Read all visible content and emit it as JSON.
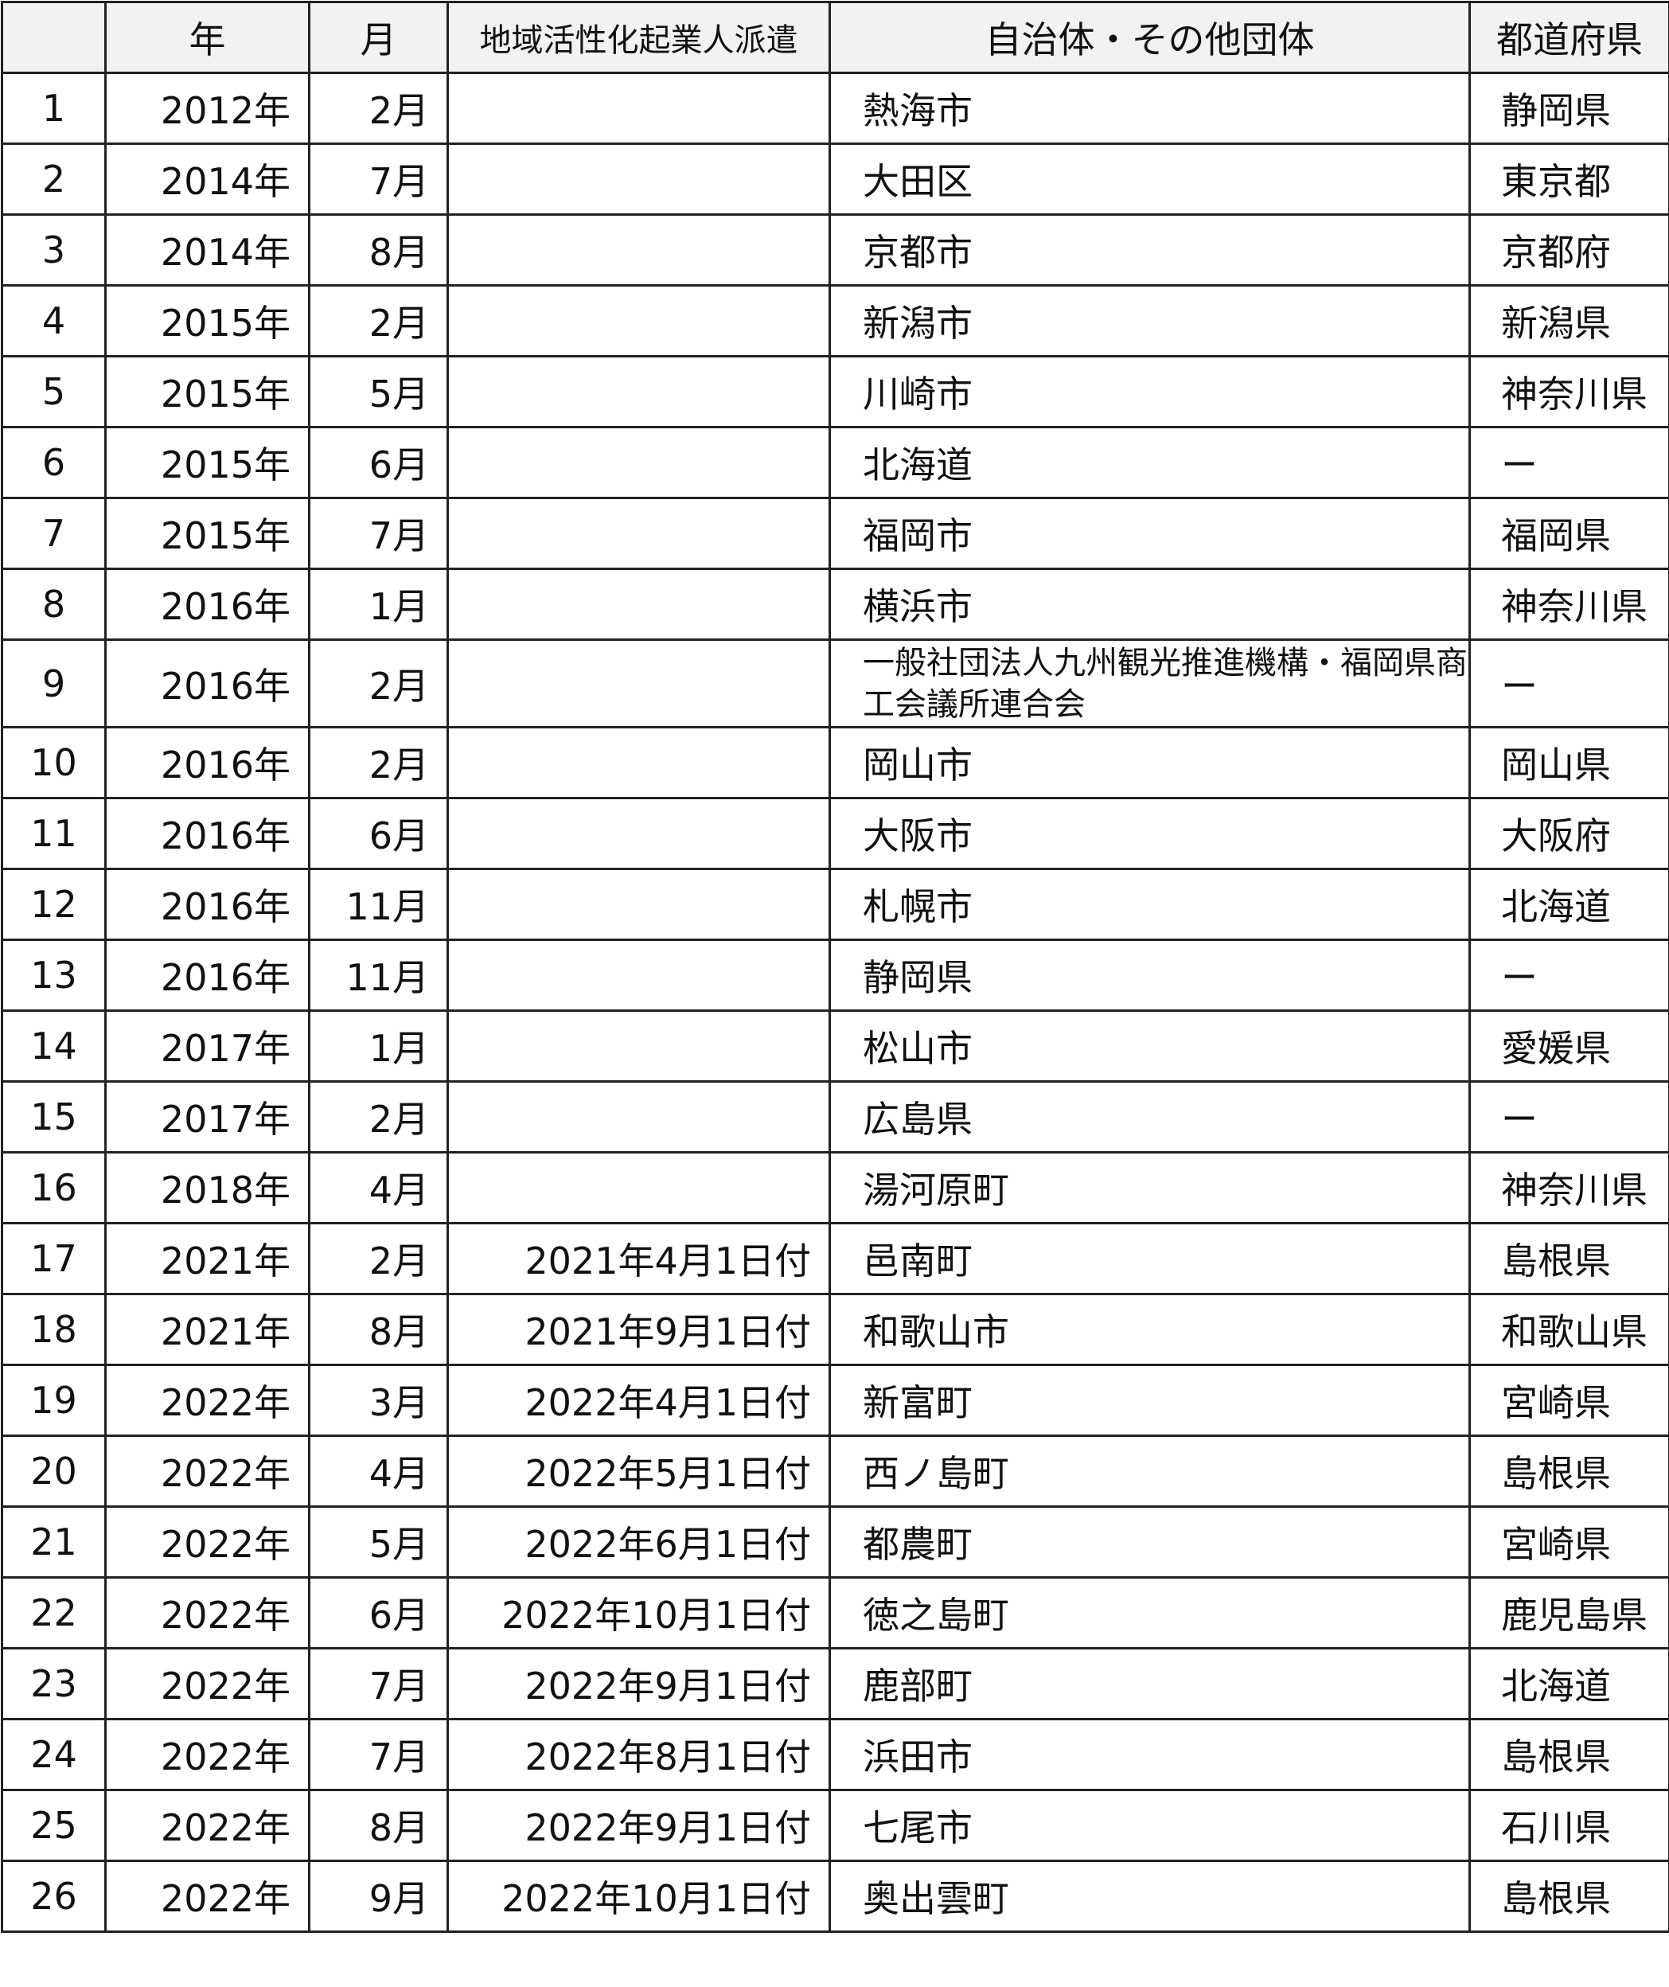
{
  "headers": [
    "",
    "年",
    "月",
    "地域活性化起業人派遣",
    "自治体・その他団体",
    "都道府県"
  ],
  "rows": [
    {
      "no": "1",
      "year": "2012年",
      "month": "2月",
      "dispatch": "",
      "org": "熱海市",
      "pref": "静岡県"
    },
    {
      "no": "2",
      "year": "2014年",
      "month": "7月",
      "dispatch": "",
      "org": "大田区",
      "pref": "東京都"
    },
    {
      "no": "3",
      "year": "2014年",
      "month": "8月",
      "dispatch": "",
      "org": "京都市",
      "pref": "京都府"
    },
    {
      "no": "4",
      "year": "2015年",
      "month": "2月",
      "dispatch": "",
      "org": "新潟市",
      "pref": "新潟県"
    },
    {
      "no": "5",
      "year": "2015年",
      "month": "5月",
      "dispatch": "",
      "org": "川崎市",
      "pref": "神奈川県"
    },
    {
      "no": "6",
      "year": "2015年",
      "month": "6月",
      "dispatch": "",
      "org": "北海道",
      "pref": "ー"
    },
    {
      "no": "7",
      "year": "2015年",
      "month": "7月",
      "dispatch": "",
      "org": "福岡市",
      "pref": "福岡県"
    },
    {
      "no": "8",
      "year": "2016年",
      "month": "1月",
      "dispatch": "",
      "org": "横浜市",
      "pref": "神奈川県"
    },
    {
      "no": "9",
      "year": "2016年",
      "month": "2月",
      "dispatch": "",
      "org": "一般社団法人九州観光推進機構・福岡県商工会議所連合会",
      "pref": "ー"
    },
    {
      "no": "10",
      "year": "2016年",
      "month": "2月",
      "dispatch": "",
      "org": "岡山市",
      "pref": "岡山県"
    },
    {
      "no": "11",
      "year": "2016年",
      "month": "6月",
      "dispatch": "",
      "org": "大阪市",
      "pref": "大阪府"
    },
    {
      "no": "12",
      "year": "2016年",
      "month": "11月",
      "dispatch": "",
      "org": "札幌市",
      "pref": "北海道"
    },
    {
      "no": "13",
      "year": "2016年",
      "month": "11月",
      "dispatch": "",
      "org": "静岡県",
      "pref": "ー"
    },
    {
      "no": "14",
      "year": "2017年",
      "month": "1月",
      "dispatch": "",
      "org": "松山市",
      "pref": "愛媛県"
    },
    {
      "no": "15",
      "year": "2017年",
      "month": "2月",
      "dispatch": "",
      "org": "広島県",
      "pref": "ー"
    },
    {
      "no": "16",
      "year": "2018年",
      "month": "4月",
      "dispatch": "",
      "org": "湯河原町",
      "pref": "神奈川県"
    },
    {
      "no": "17",
      "year": "2021年",
      "month": "2月",
      "dispatch": "2021年4月1日付",
      "org": "邑南町",
      "pref": "島根県"
    },
    {
      "no": "18",
      "year": "2021年",
      "month": "8月",
      "dispatch": "2021年9月1日付",
      "org": "和歌山市",
      "pref": "和歌山県"
    },
    {
      "no": "19",
      "year": "2022年",
      "month": "3月",
      "dispatch": "2022年4月1日付",
      "org": "新富町",
      "pref": "宮崎県"
    },
    {
      "no": "20",
      "year": "2022年",
      "month": "4月",
      "dispatch": "2022年5月1日付",
      "org": "西ノ島町",
      "pref": "島根県"
    },
    {
      "no": "21",
      "year": "2022年",
      "month": "5月",
      "dispatch": "2022年6月1日付",
      "org": "都農町",
      "pref": "宮崎県"
    },
    {
      "no": "22",
      "year": "2022年",
      "month": "6月",
      "dispatch": "2022年10月1日付",
      "org": "徳之島町",
      "pref": "鹿児島県"
    },
    {
      "no": "23",
      "year": "2022年",
      "month": "7月",
      "dispatch": "2022年9月1日付",
      "org": "鹿部町",
      "pref": "北海道"
    },
    {
      "no": "24",
      "year": "2022年",
      "month": "7月",
      "dispatch": "2022年8月1日付",
      "org": "浜田市",
      "pref": "島根県"
    },
    {
      "no": "25",
      "year": "2022年",
      "month": "8月",
      "dispatch": "2022年9月1日付",
      "org": "七尾市",
      "pref": "石川県"
    },
    {
      "no": "26",
      "year": "2022年",
      "month": "9月",
      "dispatch": "2022年10月1日付",
      "org": "奥出雲町",
      "pref": "島根県"
    }
  ]
}
